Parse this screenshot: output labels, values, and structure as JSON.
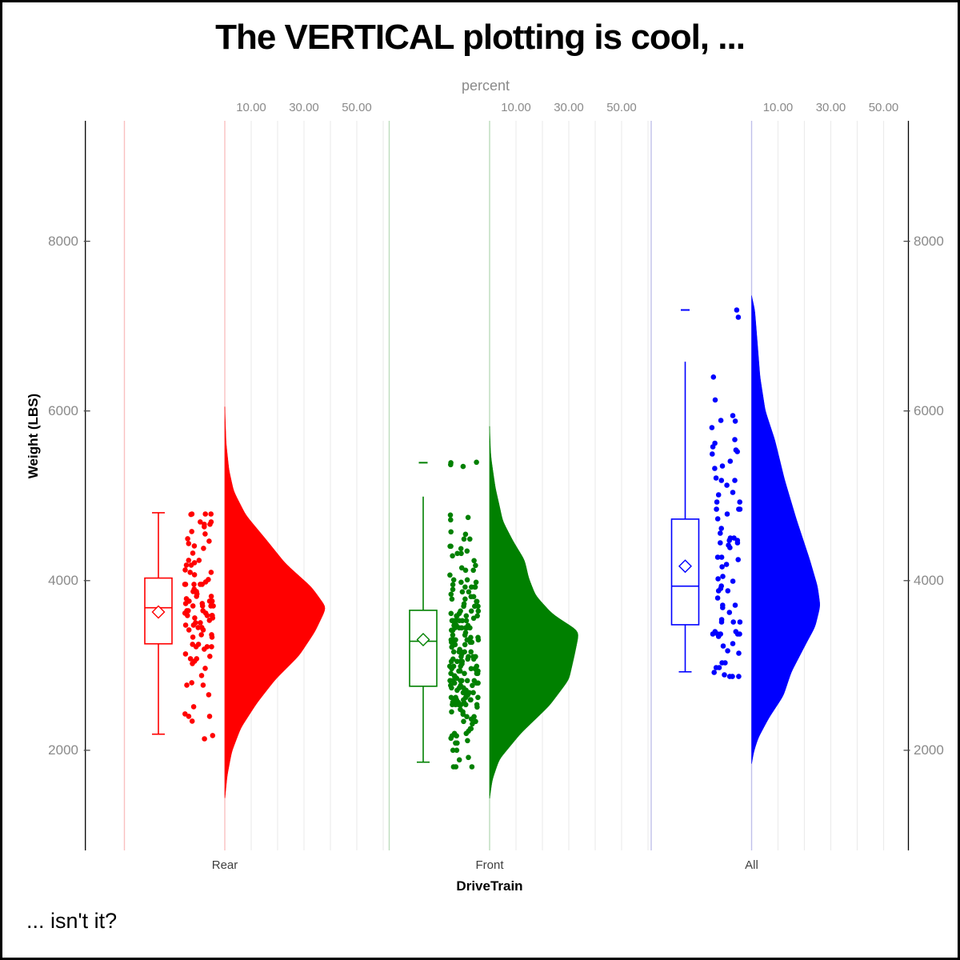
{
  "page": {
    "title": "The VERTICAL plotting is cool, ...",
    "caption": "... isn't it?"
  },
  "chart_data": {
    "type": "raincloud",
    "description": "Vertical raincloud plot (half-violin density + box plot + jittered points) of vehicle Weight (LBS) by DriveTrain",
    "x_axis": {
      "label": "DriveTrain",
      "categories": [
        "Rear",
        "Front",
        "All"
      ]
    },
    "y_axis": {
      "label": "Weight (LBS)",
      "ticks": [
        2000,
        4000,
        6000,
        8000
      ],
      "range": [
        820,
        9420
      ],
      "shown_on": "left-and-right"
    },
    "top_axis": {
      "label": "percent",
      "tick_values": [
        10,
        30,
        50
      ],
      "tick_labels": [
        "10.00",
        "30.00",
        "50.00"
      ],
      "grid_values": [
        10,
        20,
        30,
        40,
        50,
        60
      ],
      "range": [
        0,
        62
      ]
    },
    "grid_color": "#ececec",
    "groups": [
      {
        "name": "Rear",
        "color": "#ff0000",
        "tint": "#f9c0c0",
        "n_points": 100,
        "box": {
          "whisker_low": 2190,
          "q1": 3255,
          "median": 3680,
          "q3": 4030,
          "whisker_high": 4800,
          "mean": 3630,
          "whisker_high_capped": true,
          "outliers": []
        },
        "featured_points": [
          4780,
          4665
        ],
        "violin_profile": [
          [
            6050,
            0
          ],
          [
            5620,
            0.5
          ],
          [
            5300,
            1.6
          ],
          [
            5050,
            3.4
          ],
          [
            4770,
            8
          ],
          [
            4490,
            15.5
          ],
          [
            4200,
            23
          ],
          [
            3920,
            33
          ],
          [
            3680,
            38.5
          ],
          [
            3390,
            34
          ],
          [
            3110,
            28
          ],
          [
            2830,
            19
          ],
          [
            2550,
            12
          ],
          [
            2260,
            6
          ],
          [
            1980,
            2.6
          ],
          [
            1700,
            0.9
          ],
          [
            1420,
            0
          ]
        ]
      },
      {
        "name": "Front",
        "color": "#008000",
        "tint": "#bcdcbc",
        "n_points": 205,
        "box": {
          "whisker_low": 1860,
          "q1": 2755,
          "median": 3285,
          "q3": 3650,
          "whisker_high": 4990,
          "mean": 3305,
          "whisker_high_capped": false,
          "outliers": [
            5390
          ]
        },
        "featured_points": [
          5390,
          5345
        ],
        "violin_profile": [
          [
            5820,
            0
          ],
          [
            5500,
            0.4
          ],
          [
            5390,
            0.8
          ],
          [
            5090,
            2.2
          ],
          [
            4900,
            3.6
          ],
          [
            4700,
            5
          ],
          [
            4460,
            9
          ],
          [
            4240,
            13.3
          ],
          [
            4030,
            14.8
          ],
          [
            3820,
            17.5
          ],
          [
            3600,
            24
          ],
          [
            3400,
            34
          ],
          [
            3100,
            32
          ],
          [
            2830,
            30
          ],
          [
            2520,
            22.5
          ],
          [
            2200,
            11.8
          ],
          [
            1890,
            3.6
          ],
          [
            1650,
            1
          ],
          [
            1430,
            0
          ]
        ]
      },
      {
        "name": "All",
        "color": "#0000ff",
        "tint": "#c0c0ea",
        "n_points": 82,
        "box": {
          "whisker_low": 2925,
          "q1": 3480,
          "median": 3935,
          "q3": 4725,
          "whisker_high": 6580,
          "mean": 4170,
          "whisker_high_capped": false,
          "outliers": [
            7190
          ]
        },
        "featured_points": [
          7190,
          6400,
          6130,
          5880,
          5620,
          5540
        ],
        "violin_profile": [
          [
            7360,
            0
          ],
          [
            7190,
            1.2
          ],
          [
            6800,
            2.2
          ],
          [
            6400,
            3.2
          ],
          [
            6000,
            5.2
          ],
          [
            5660,
            8.8
          ],
          [
            5190,
            12.5
          ],
          [
            4720,
            17
          ],
          [
            4250,
            22
          ],
          [
            3930,
            25
          ],
          [
            3700,
            26
          ],
          [
            3450,
            24
          ],
          [
            3280,
            21
          ],
          [
            2920,
            15
          ],
          [
            2640,
            12
          ],
          [
            2380,
            6.5
          ],
          [
            2140,
            2.4
          ],
          [
            1980,
            0.8
          ],
          [
            1840,
            0
          ]
        ]
      }
    ]
  }
}
